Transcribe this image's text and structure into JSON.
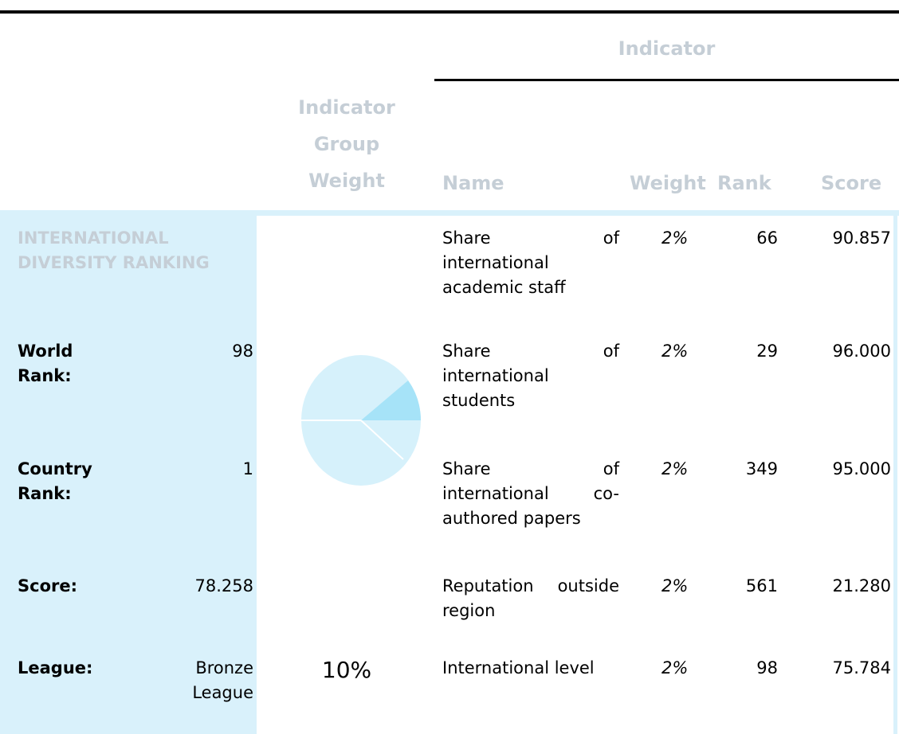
{
  "header": {
    "indicator": "Indicator",
    "group_weight": "Indicator Group Weight",
    "name": "Name",
    "weight": "Weight",
    "rank": "Rank",
    "score": "Score"
  },
  "group": {
    "title": "INTERNATIONAL DIVERSITY RANKING",
    "fields": [
      {
        "label": "World Rank:",
        "value": "98"
      },
      {
        "label": "Country Rank:",
        "value": "1"
      },
      {
        "label": "Score:",
        "value": "78.258"
      },
      {
        "label": "League:",
        "value": "Bronze League"
      }
    ]
  },
  "group_weight": "10%",
  "rows": [
    {
      "name": "Share of international academic staff",
      "weight": "2%",
      "rank": "66",
      "score": "90.857"
    },
    {
      "name": "Share of international students",
      "weight": "2%",
      "rank": "29",
      "score": "96.000"
    },
    {
      "name": "Share of international co-authored papers",
      "weight": "2%",
      "rank": "349",
      "score": "95.000"
    },
    {
      "name": "Reputation outside region",
      "weight": "2%",
      "rank": "561",
      "score": "21.280"
    },
    {
      "name": "International level",
      "weight": "2%",
      "rank": "98",
      "score": "75.784"
    }
  ]
}
